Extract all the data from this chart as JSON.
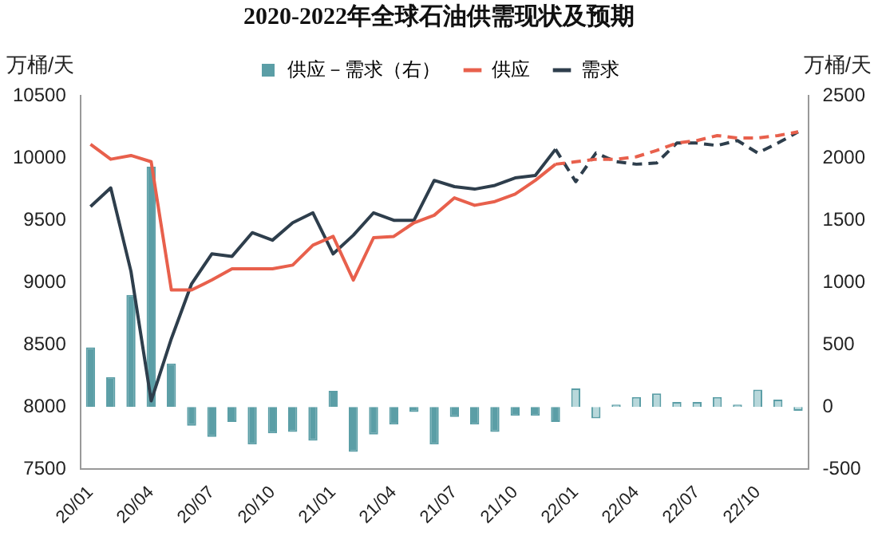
{
  "chart_data": {
    "type": "bar",
    "title": "2020-2022年全球石油供需现状及预期",
    "ylabel": "万桶/天",
    "y2label": "万桶/天",
    "categories": [
      "20/01",
      null,
      null,
      "20/04",
      null,
      null,
      "20/07",
      null,
      null,
      "20/10",
      null,
      null,
      "21/01",
      null,
      null,
      "21/04",
      null,
      null,
      "21/07",
      null,
      null,
      "21/10",
      null,
      null,
      "22/01",
      null,
      null,
      "22/04",
      null,
      null,
      "22/07",
      null,
      null,
      "22/10",
      null,
      null
    ],
    "series": [
      {
        "name": "供应－需求（右）",
        "axis": "y2",
        "color": "#5b9ea6",
        "colors": [
          "#5b9ea6",
          "#5b9ea6",
          "#5b9ea6",
          "#5b9ea6",
          "#5b9ea6",
          "#5b9ea6",
          "#5b9ea6",
          "#5b9ea6",
          "#5b9ea6",
          "#5b9ea6",
          "#5b9ea6",
          "#5b9ea6",
          "#5b9ea6",
          "#5b9ea6",
          "#5b9ea6",
          "#5b9ea6",
          "#5b9ea6",
          "#5b9ea6",
          "#5b9ea6",
          "#5b9ea6",
          "#5b9ea6",
          "#5b9ea6",
          "#5b9ea6",
          "#5b9ea6",
          "#b8d8db",
          "#b8d8db",
          "#b8d8db",
          "#b8d8db",
          "#b8d8db",
          "#b8d8db",
          "#b8d8db",
          "#b8d8db",
          "#b8d8db",
          "#b8d8db",
          "#b8d8db",
          "#b8d8db"
        ],
        "values": [
          480,
          240,
          900,
          1930,
          350,
          -150,
          -240,
          -120,
          -300,
          -210,
          -200,
          -270,
          130,
          -360,
          -220,
          -140,
          -40,
          -300,
          -80,
          -140,
          -200,
          -70,
          -70,
          -120,
          150,
          -90,
          20,
          80,
          110,
          40,
          40,
          80,
          20,
          140,
          60,
          -30
        ]
      },
      {
        "name": "供应",
        "type": "line",
        "color": "#e8604c",
        "line_style": "solid",
        "values": [
          10110,
          9990,
          10020,
          9970,
          8940,
          8940,
          9020,
          9110,
          9110,
          9110,
          9140,
          9300,
          9370,
          9020,
          9360,
          9370,
          9480,
          9540,
          9680,
          9620,
          9650,
          9710,
          9820,
          9950,
          null,
          null,
          null,
          null,
          null,
          null,
          null,
          null,
          null,
          null,
          null,
          null
        ]
      },
      {
        "name": "需求",
        "type": "line",
        "color": "#2e3e4c",
        "line_style": "solid",
        "values": [
          9610,
          9760,
          9090,
          8050,
          8550,
          8990,
          9230,
          9210,
          9400,
          9340,
          9480,
          9560,
          9230,
          9380,
          9560,
          9500,
          9500,
          9820,
          9770,
          9750,
          9780,
          9840,
          9860,
          10070,
          null,
          null,
          null,
          null,
          null,
          null,
          null,
          null,
          null,
          null,
          null,
          null
        ]
      },
      {
        "type": "line",
        "color": "#e8604c",
        "line_style": "dashed",
        "values": [
          null,
          null,
          null,
          null,
          null,
          null,
          null,
          null,
          null,
          null,
          null,
          null,
          null,
          null,
          null,
          null,
          null,
          null,
          null,
          null,
          null,
          null,
          null,
          9950,
          9970,
          9990,
          9990,
          10010,
          10060,
          10120,
          10140,
          10180,
          10160,
          10160,
          10180,
          10210
        ]
      },
      {
        "type": "line",
        "color": "#2e3e4c",
        "line_style": "dashed",
        "values": [
          null,
          null,
          null,
          null,
          null,
          null,
          null,
          null,
          null,
          null,
          null,
          null,
          null,
          null,
          null,
          null,
          null,
          null,
          null,
          null,
          null,
          null,
          null,
          10070,
          9810,
          10040,
          9970,
          9950,
          9960,
          10120,
          10120,
          10100,
          10140,
          10040,
          10120,
          10210
        ]
      }
    ],
    "ylim": [
      7500,
      10500
    ],
    "yticks": [
      7500,
      8000,
      8500,
      9000,
      9500,
      10000,
      10500
    ],
    "y2lim": [
      -500,
      2500
    ],
    "y2ticks": [
      -500,
      0,
      500,
      1000,
      1500,
      2000,
      2500
    ],
    "legend": "top",
    "grid": false,
    "marker": "none"
  }
}
